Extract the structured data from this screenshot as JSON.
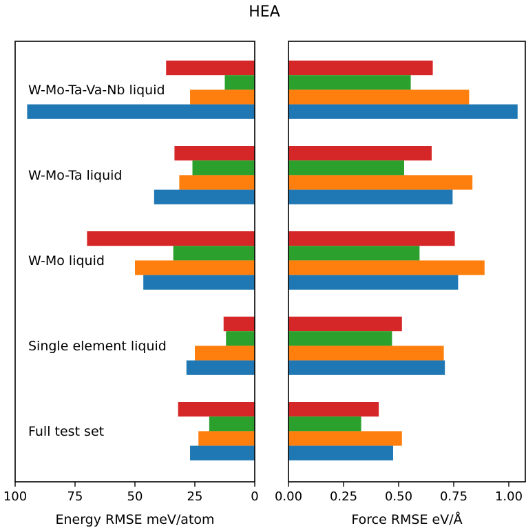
{
  "chart_data": {
    "title": "HEA",
    "type": "bar",
    "orientation": "horizontal",
    "categories": [
      "W-Mo-Ta-Va-Nb liquid",
      "W-Mo-Ta liquid",
      "W-Mo liquid",
      "Single element liquid",
      "Full test set"
    ],
    "series_colors": [
      "#d62728",
      "#2ca02c",
      "#ff7f0e",
      "#1f77b4"
    ],
    "panels": [
      {
        "xlabel": "Energy RMSE meV/atom",
        "xlim": [
          100,
          0
        ],
        "xticks": [
          "100",
          "75",
          "50",
          "25",
          "0"
        ],
        "inverted": true,
        "series": [
          {
            "values": [
              37,
              33.5,
              70,
              13,
              32
            ]
          },
          {
            "values": [
              12.5,
              26,
              34,
              12,
              19
            ]
          },
          {
            "values": [
              27,
              31.5,
              50,
              25,
              23.5
            ]
          },
          {
            "values": [
              95,
              42,
              46.5,
              28.5,
              27
            ]
          }
        ]
      },
      {
        "xlabel": "Force RMSE eV/Å",
        "xlim": [
          0,
          1.075
        ],
        "xticks": [
          "0.00",
          "0.25",
          "0.50",
          "0.75",
          "1.00"
        ],
        "inverted": false,
        "series": [
          {
            "values": [
              0.655,
              0.65,
              0.755,
              0.515,
              0.41
            ]
          },
          {
            "values": [
              0.555,
              0.525,
              0.595,
              0.47,
              0.33
            ]
          },
          {
            "values": [
              0.82,
              0.835,
              0.89,
              0.705,
              0.515
            ]
          },
          {
            "values": [
              1.04,
              0.745,
              0.77,
              0.71,
              0.475
            ]
          }
        ]
      }
    ]
  }
}
